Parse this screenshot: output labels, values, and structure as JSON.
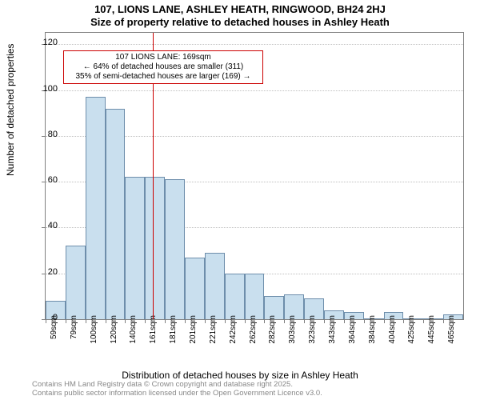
{
  "chart": {
    "type": "histogram",
    "title_main": "107, LIONS LANE, ASHLEY HEATH, RINGWOOD, BH24 2HJ",
    "title_sub": "Size of property relative to detached houses in Ashley Heath",
    "title_fontsize": 13,
    "ylabel": "Number of detached properties",
    "xlabel": "Distribution of detached houses by size in Ashley Heath",
    "label_fontsize": 12,
    "background_color": "#ffffff",
    "border_color": "#808080",
    "grid_color": "#c0c0c0",
    "bar_fill_color": "#c9dfee",
    "bar_border_color": "#6e8eab",
    "refline_color": "#cc0000",
    "refline_width": 1.5,
    "refline_x": 169,
    "annotation_border_color": "#cc0000",
    "tick_fontsize": 11,
    "xtick_fontsize": 10,
    "xlim": [
      59,
      475
    ],
    "ylim": [
      0,
      125
    ],
    "yticks": [
      0,
      20,
      40,
      60,
      80,
      100,
      120
    ],
    "xticks": [
      "59sqm",
      "79sqm",
      "100sqm",
      "120sqm",
      "140sqm",
      "161sqm",
      "181sqm",
      "201sqm",
      "221sqm",
      "242sqm",
      "262sqm",
      "282sqm",
      "303sqm",
      "323sqm",
      "343sqm",
      "364sqm",
      "384sqm",
      "404sqm",
      "425sqm",
      "445sqm",
      "465sqm"
    ],
    "bars": [
      8,
      32,
      97,
      92,
      62,
      62,
      61,
      27,
      29,
      20,
      20,
      10,
      11,
      9,
      4,
      3,
      0,
      3,
      0,
      0,
      2
    ],
    "annotation": {
      "line1": "107 LIONS LANE: 169sqm",
      "line2": "← 64% of detached houses are smaller (311)",
      "line3": "35% of semi-detached houses are larger (169) →"
    },
    "attribution": {
      "line1": "Contains HM Land Registry data © Crown copyright and database right 2025.",
      "line2": "Contains public sector information licensed under the Open Government Licence v3.0."
    }
  }
}
